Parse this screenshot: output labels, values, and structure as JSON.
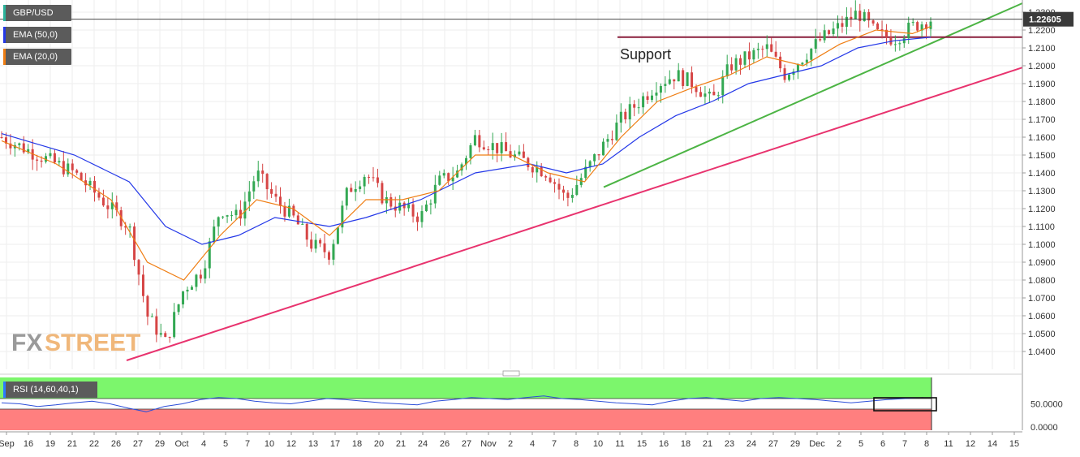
{
  "legend": {
    "main": "GBP/USD",
    "ema50": "EMA (50,0)",
    "ema20": "EMA (20,0)",
    "rsi": "RSI (14,60,40,1)"
  },
  "colors": {
    "ema50": "#2438e8",
    "ema20": "#ef7d12",
    "bull": "#33a853",
    "bear": "#d64545",
    "support_trend": "#4cb444",
    "long_trend": "#e8336e",
    "horizontal": "#8a1f3c",
    "rsi_line": "#2b4ed8",
    "rsi_upper_zone": "#7cf66c",
    "rsi_lower_zone": "#ff7f7f",
    "current_price_tag": "#3a3a3a"
  },
  "brand": {
    "fx": "FX",
    "street": "STREET"
  },
  "chart_data": [
    {
      "type": "candlestick",
      "title": "GBP/USD",
      "price_axis": {
        "range": [
          1.03,
          1.235
        ],
        "ticks": [
          "1.0400",
          "1.0500",
          "1.0600",
          "1.0700",
          "1.0800",
          "1.0900",
          "1.1000",
          "1.1100",
          "1.1200",
          "1.1300",
          "1.1400",
          "1.1500",
          "1.1600",
          "1.1700",
          "1.1800",
          "1.1900",
          "1.2000",
          "1.2100",
          "1.2200",
          "1.2300"
        ]
      },
      "current_price": "1.22605",
      "time_axis": {
        "labels": [
          "Sep",
          "16",
          "19",
          "21",
          "22",
          "26",
          "27",
          "29",
          "Oct",
          "4",
          "5",
          "7",
          "10",
          "12",
          "13",
          "17",
          "18",
          "20",
          "21",
          "24",
          "26",
          "27",
          "Nov",
          "2",
          "4",
          "7",
          "8",
          "10",
          "11",
          "15",
          "16",
          "18",
          "21",
          "23",
          "24",
          "27",
          "29",
          "Dec",
          "2",
          "5",
          "6",
          "7",
          "8",
          "11",
          "12",
          "14",
          "15"
        ],
        "future_labels_from": "11"
      },
      "price_path": [
        [
          0,
          1.16
        ],
        [
          2,
          1.15
        ],
        [
          4,
          1.14
        ],
        [
          6,
          1.12
        ],
        [
          7,
          1.11
        ],
        [
          8,
          1.06
        ],
        [
          9,
          1.045
        ],
        [
          10,
          1.075
        ],
        [
          11,
          1.085
        ],
        [
          12,
          1.12
        ],
        [
          13,
          1.115
        ],
        [
          14,
          1.14
        ],
        [
          15,
          1.125
        ],
        [
          16,
          1.115
        ],
        [
          17,
          1.1
        ],
        [
          18,
          1.095
        ],
        [
          19,
          1.13
        ],
        [
          20,
          1.14
        ],
        [
          21,
          1.125
        ],
        [
          22,
          1.12
        ],
        [
          23,
          1.115
        ],
        [
          24,
          1.135
        ],
        [
          25,
          1.14
        ],
        [
          26,
          1.16
        ],
        [
          27,
          1.155
        ],
        [
          28,
          1.15
        ],
        [
          29,
          1.145
        ],
        [
          30,
          1.14
        ],
        [
          31,
          1.125
        ],
        [
          32,
          1.14
        ],
        [
          33,
          1.155
        ],
        [
          34,
          1.17
        ],
        [
          35,
          1.18
        ],
        [
          36,
          1.19
        ],
        [
          37,
          1.195
        ],
        [
          38,
          1.19
        ],
        [
          39,
          1.18
        ],
        [
          40,
          1.2
        ],
        [
          41,
          1.205
        ],
        [
          42,
          1.21
        ],
        [
          43,
          1.195
        ],
        [
          44,
          1.205
        ],
        [
          45,
          1.215
        ],
        [
          46,
          1.222
        ],
        [
          47,
          1.23
        ],
        [
          48,
          1.218
        ],
        [
          49,
          1.215
        ],
        [
          50,
          1.222
        ],
        [
          51,
          1.226
        ]
      ],
      "ema20_path": [
        [
          0,
          1.158
        ],
        [
          3,
          1.145
        ],
        [
          6,
          1.125
        ],
        [
          8,
          1.09
        ],
        [
          10,
          1.08
        ],
        [
          12,
          1.105
        ],
        [
          14,
          1.125
        ],
        [
          16,
          1.12
        ],
        [
          18,
          1.105
        ],
        [
          20,
          1.125
        ],
        [
          22,
          1.125
        ],
        [
          24,
          1.13
        ],
        [
          26,
          1.15
        ],
        [
          28,
          1.15
        ],
        [
          30,
          1.14
        ],
        [
          32,
          1.135
        ],
        [
          34,
          1.16
        ],
        [
          36,
          1.18
        ],
        [
          38,
          1.188
        ],
        [
          40,
          1.195
        ],
        [
          42,
          1.205
        ],
        [
          44,
          1.2
        ],
        [
          46,
          1.212
        ],
        [
          48,
          1.22
        ],
        [
          50,
          1.218
        ],
        [
          51,
          1.222
        ]
      ],
      "ema50_path": [
        [
          0,
          1.162
        ],
        [
          4,
          1.15
        ],
        [
          7,
          1.135
        ],
        [
          9,
          1.11
        ],
        [
          11,
          1.1
        ],
        [
          13,
          1.105
        ],
        [
          15,
          1.115
        ],
        [
          18,
          1.11
        ],
        [
          20,
          1.115
        ],
        [
          23,
          1.125
        ],
        [
          26,
          1.14
        ],
        [
          29,
          1.145
        ],
        [
          31,
          1.14
        ],
        [
          33,
          1.145
        ],
        [
          35,
          1.16
        ],
        [
          37,
          1.172
        ],
        [
          39,
          1.18
        ],
        [
          41,
          1.19
        ],
        [
          43,
          1.195
        ],
        [
          45,
          1.2
        ],
        [
          47,
          1.21
        ],
        [
          49,
          1.214
        ],
        [
          51,
          1.216
        ]
      ],
      "annotations": {
        "support_label": "Support",
        "horizontal_level": 1.216,
        "support_trendline": [
          [
            1.132,
            "from Nov 10"
          ],
          [
            1.235,
            "to Dec 15"
          ]
        ],
        "long_trendline": [
          [
            1.035,
            "from Sep 26"
          ],
          [
            1.199,
            "to Dec 15"
          ]
        ]
      }
    },
    {
      "type": "line",
      "title": "RSI (14,60,40,1)",
      "y_ticks": [
        "0.0000",
        "50.0000"
      ],
      "upper_level": 60,
      "lower_level": 40,
      "range": [
        0,
        100
      ],
      "values": [
        52,
        50,
        45,
        48,
        52,
        55,
        50,
        42,
        35,
        45,
        50,
        58,
        62,
        60,
        55,
        52,
        50,
        55,
        60,
        58,
        55,
        52,
        50,
        48,
        55,
        58,
        62,
        60,
        58,
        62,
        65,
        60,
        58,
        55,
        52,
        50,
        48,
        55,
        60,
        62,
        58,
        55,
        60,
        62,
        60,
        58,
        55,
        52,
        55,
        58,
        60,
        62
      ]
    }
  ]
}
